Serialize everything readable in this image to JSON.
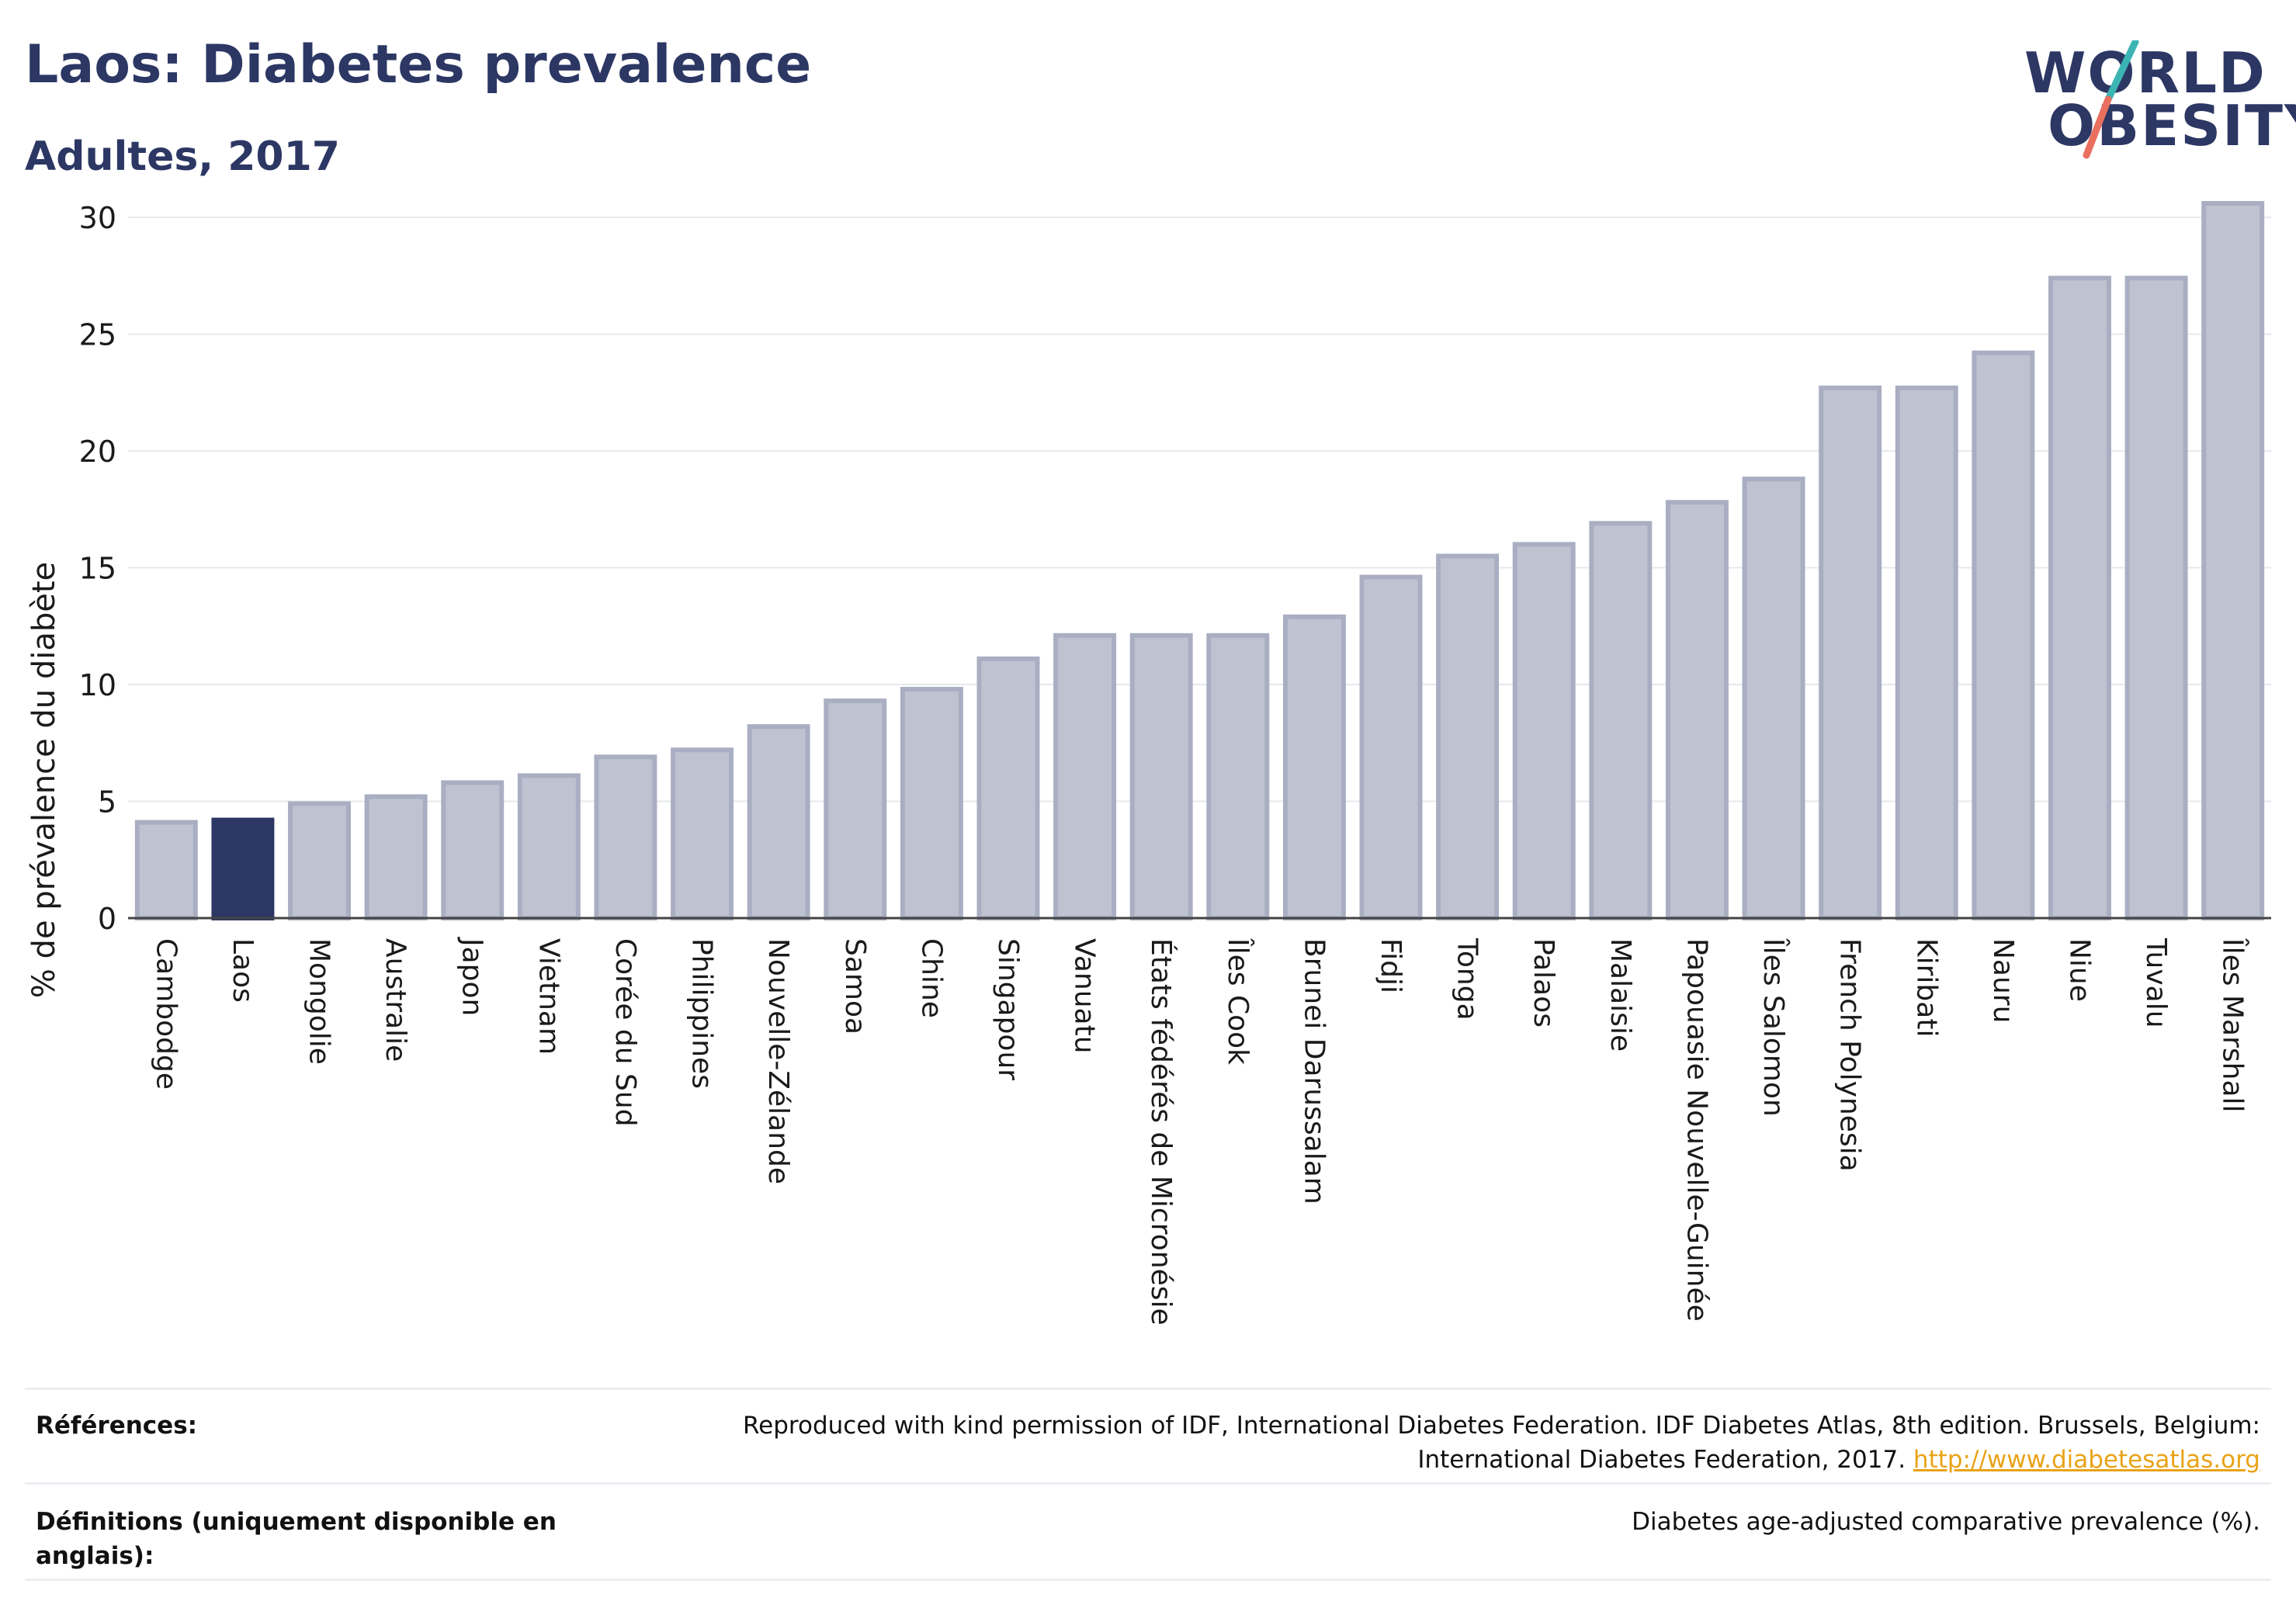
{
  "header": {
    "title": "Laos: Diabetes prevalence",
    "subtitle": "Adultes, 2017",
    "logo_line1": "WORLD",
    "logo_line2": "OBESITY"
  },
  "colors": {
    "highlight_bar": "#2c3764",
    "default_bar": "#bfc3d1",
    "bar_outline": "#a9aec2",
    "logo_slash_teal": "#3cb4b4",
    "logo_slash_coral": "#e96f5f",
    "link": "#e8a317"
  },
  "chart_data": {
    "type": "bar",
    "title": "Laos: Diabetes prevalence",
    "subtitle": "Adultes, 2017",
    "ylabel": "% de prévalence du diabète",
    "xlabel": "",
    "ylim": [
      0,
      31
    ],
    "yticks": [
      0,
      5,
      10,
      15,
      20,
      25,
      30
    ],
    "grid": true,
    "highlight": "Laos",
    "categories": [
      "Cambodge",
      "Laos",
      "Mongolie",
      "Australie",
      "Japon",
      "Vietnam",
      "Corée du Sud",
      "Philippines",
      "Nouvelle-Zélande",
      "Samoa",
      "Chine",
      "Singapour",
      "Vanuatu",
      "États fédérés de Micronésie",
      "Îles Cook",
      "Brunei Darussalam",
      "Fidji",
      "Tonga",
      "Palaos",
      "Malaisie",
      "Papouasie Nouvelle-Guinée",
      "Îles Salomon",
      "French Polynesia",
      "Kiribati",
      "Nauru",
      "Niue",
      "Tuvalu",
      "Îles Marshall"
    ],
    "values": [
      4.1,
      4.2,
      4.9,
      5.2,
      5.8,
      6.1,
      6.9,
      7.2,
      8.2,
      9.3,
      9.8,
      11.1,
      12.1,
      12.1,
      12.1,
      12.9,
      14.6,
      15.5,
      16.0,
      16.9,
      17.8,
      18.8,
      22.7,
      22.7,
      24.2,
      27.4,
      27.4,
      30.6
    ]
  },
  "references": {
    "sources_label": "Références:",
    "sources_text": "Reproduced with kind permission of IDF, International Diabetes Federation. IDF Diabetes Atlas, 8th edition. Brussels, Belgium:",
    "sources_text2": "International Diabetes Federation, 2017.",
    "sources_link": "http://www.diabetesatlas.org",
    "definitions_label": "Définitions (uniquement disponible en anglais):",
    "definitions_text": "Diabetes age-adjusted comparative prevalence (%)."
  }
}
